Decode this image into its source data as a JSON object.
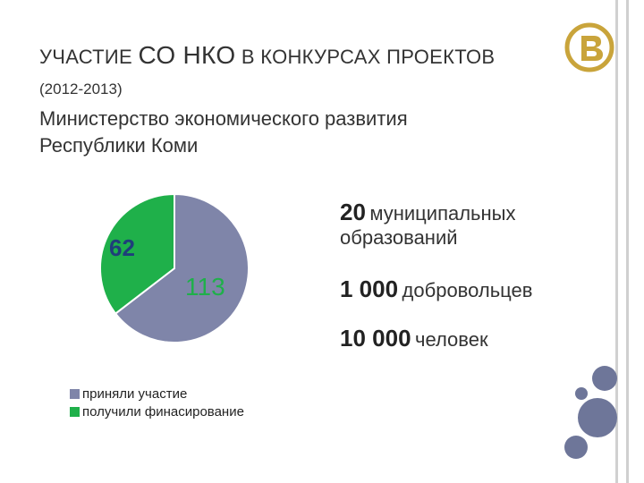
{
  "slide": {
    "title_part1": "Участие",
    "title_part2": "СО НКО",
    "title_part3": "в конкурсах проектов",
    "subtitle": "(2012-2013)",
    "body_line1": "Министерство экономического развития",
    "body_line2": "Республики Коми"
  },
  "stats": [
    {
      "number": "20",
      "text": "муниципальных",
      "text2": "образований"
    },
    {
      "number": "1 000",
      "text": "добровольцев"
    },
    {
      "number": "10 000",
      "text": "человек"
    }
  ],
  "colors": {
    "series_blue": "#7f85a9",
    "series_green": "#1fb04a",
    "logo_gold": "#c9a43b"
  },
  "chart_data": {
    "type": "pie",
    "categories": [
      "приняли участие",
      "получили финасирование"
    ],
    "values": [
      113,
      62
    ],
    "data_labels": [
      "113",
      "62"
    ],
    "legend_position": "bottom-left"
  }
}
